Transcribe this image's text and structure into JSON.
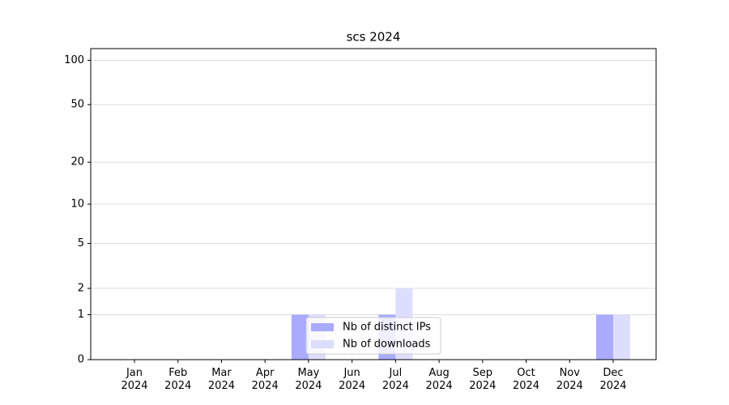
{
  "chart_data": {
    "type": "bar",
    "title": "scs 2024",
    "categories": [
      "Jan 2024",
      "Feb 2024",
      "Mar 2024",
      "Apr 2024",
      "May 2024",
      "Jun 2024",
      "Jul 2024",
      "Aug 2024",
      "Sep 2024",
      "Oct 2024",
      "Nov 2024",
      "Dec 2024"
    ],
    "series": [
      {
        "name": "Nb of distinct IPs",
        "color": "#aaaaff",
        "values": [
          0,
          0,
          0,
          0,
          1,
          0,
          1,
          0,
          0,
          0,
          0,
          1
        ]
      },
      {
        "name": "Nb of downloads",
        "color": "#ddddff",
        "values": [
          0,
          0,
          0,
          0,
          1,
          0,
          2,
          0,
          0,
          0,
          0,
          1
        ]
      }
    ],
    "yscale": "log1p",
    "ylim": [
      0,
      120
    ],
    "yticks": [
      0,
      1,
      2,
      5,
      10,
      20,
      50,
      100
    ],
    "grid": true,
    "legend": "lower center"
  }
}
